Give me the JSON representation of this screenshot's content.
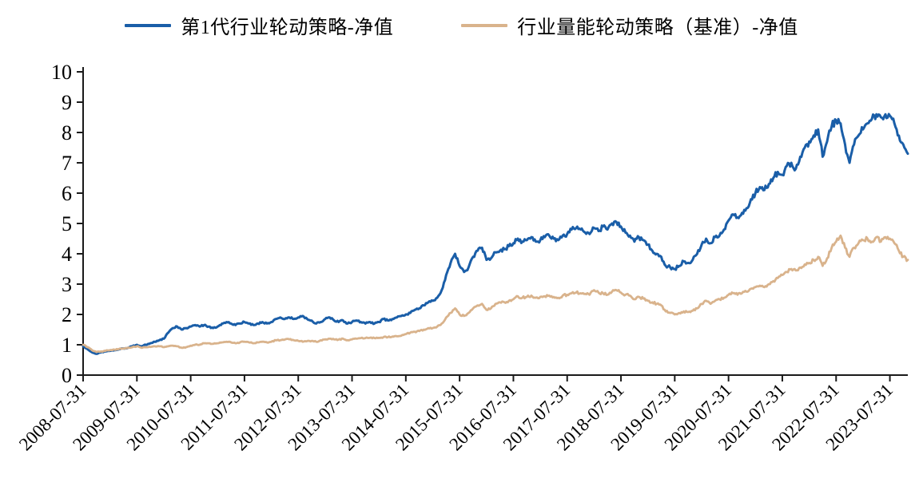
{
  "legend": [
    {
      "label": "第1代行业轮动策略-净值",
      "color": "#1A5EA8"
    },
    {
      "label": "行业量能轮动策略（基准）-净值",
      "color": "#D9B38C"
    }
  ],
  "chart_data": {
    "type": "line",
    "title": "",
    "xlabel": "",
    "ylabel": "",
    "grid": false,
    "legend_position": "top",
    "ylim": [
      0,
      10
    ],
    "y_ticks": [
      0,
      1,
      2,
      3,
      4,
      5,
      6,
      7,
      8,
      9,
      10
    ],
    "x_start_month": "2008-07",
    "x_months_per_tick": 12,
    "x_tick_labels": [
      "2008-07-31",
      "2009-07-31",
      "2010-07-31",
      "2011-07-31",
      "2012-07-31",
      "2013-07-31",
      "2014-07-31",
      "2015-07-31",
      "2016-07-31",
      "2017-07-31",
      "2018-07-31",
      "2019-07-31",
      "2020-07-31",
      "2021-07-31",
      "2022-07-31",
      "2023-07-31"
    ],
    "series": [
      {
        "name": "第1代行业轮动策略-净值",
        "color": "#1A5EA8",
        "values": [
          0.95,
          0.85,
          0.75,
          0.7,
          0.75,
          0.78,
          0.8,
          0.82,
          0.85,
          0.88,
          0.9,
          0.95,
          1.0,
          0.95,
          1.0,
          1.05,
          1.1,
          1.15,
          1.2,
          1.4,
          1.55,
          1.6,
          1.5,
          1.55,
          1.6,
          1.65,
          1.6,
          1.65,
          1.6,
          1.55,
          1.6,
          1.7,
          1.75,
          1.7,
          1.65,
          1.7,
          1.75,
          1.7,
          1.65,
          1.7,
          1.75,
          1.7,
          1.75,
          1.85,
          1.9,
          1.85,
          1.9,
          1.85,
          1.9,
          1.95,
          1.85,
          1.8,
          1.7,
          1.75,
          1.85,
          1.9,
          1.8,
          1.75,
          1.8,
          1.7,
          1.75,
          1.8,
          1.75,
          1.7,
          1.75,
          1.7,
          1.75,
          1.85,
          1.8,
          1.85,
          1.9,
          1.95,
          2.0,
          2.05,
          2.15,
          2.2,
          2.3,
          2.4,
          2.45,
          2.55,
          2.8,
          3.3,
          3.7,
          4.0,
          3.6,
          3.4,
          3.55,
          3.9,
          4.1,
          4.2,
          3.8,
          3.85,
          4.05,
          4.1,
          4.15,
          4.25,
          4.35,
          4.5,
          4.4,
          4.45,
          4.55,
          4.4,
          4.45,
          4.55,
          4.6,
          4.5,
          4.45,
          4.6,
          4.65,
          4.8,
          4.85,
          4.8,
          4.7,
          4.65,
          4.85,
          4.75,
          4.9,
          4.8,
          5.0,
          5.05,
          4.9,
          4.7,
          4.6,
          4.4,
          4.55,
          4.45,
          4.3,
          4.1,
          4.0,
          3.9,
          3.6,
          3.55,
          3.5,
          3.6,
          3.75,
          3.7,
          3.8,
          4.0,
          4.3,
          4.5,
          4.35,
          4.55,
          4.6,
          4.8,
          5.1,
          5.3,
          5.2,
          5.35,
          5.5,
          5.8,
          6.0,
          6.2,
          6.1,
          6.3,
          6.5,
          6.7,
          6.6,
          6.9,
          7.0,
          6.8,
          7.2,
          7.5,
          7.7,
          7.9,
          8.1,
          7.2,
          7.7,
          8.2,
          8.4,
          8.3,
          7.6,
          7.0,
          7.6,
          7.9,
          8.1,
          8.3,
          8.45,
          8.6,
          8.5,
          8.6,
          8.55,
          8.3,
          7.9,
          7.6,
          7.3
        ]
      },
      {
        "name": "行业量能轮动策略（基准）-净值",
        "color": "#D9B38C",
        "values": [
          1.0,
          0.92,
          0.82,
          0.76,
          0.78,
          0.8,
          0.82,
          0.84,
          0.86,
          0.88,
          0.9,
          0.92,
          0.95,
          0.9,
          0.92,
          0.93,
          0.95,
          0.95,
          0.92,
          0.95,
          0.97,
          0.95,
          0.9,
          0.92,
          0.97,
          1.0,
          1.0,
          1.05,
          1.05,
          1.03,
          1.05,
          1.08,
          1.1,
          1.08,
          1.05,
          1.08,
          1.1,
          1.08,
          1.05,
          1.08,
          1.1,
          1.08,
          1.1,
          1.15,
          1.15,
          1.17,
          1.18,
          1.15,
          1.13,
          1.1,
          1.12,
          1.13,
          1.1,
          1.15,
          1.18,
          1.2,
          1.18,
          1.17,
          1.2,
          1.15,
          1.18,
          1.2,
          1.22,
          1.22,
          1.23,
          1.22,
          1.23,
          1.25,
          1.25,
          1.27,
          1.28,
          1.3,
          1.35,
          1.4,
          1.43,
          1.45,
          1.5,
          1.55,
          1.55,
          1.6,
          1.7,
          1.9,
          2.05,
          2.2,
          2.0,
          1.95,
          2.05,
          2.2,
          2.3,
          2.35,
          2.15,
          2.2,
          2.35,
          2.4,
          2.4,
          2.45,
          2.5,
          2.6,
          2.55,
          2.58,
          2.62,
          2.55,
          2.58,
          2.6,
          2.62,
          2.58,
          2.55,
          2.62,
          2.65,
          2.7,
          2.72,
          2.7,
          2.68,
          2.65,
          2.8,
          2.72,
          2.7,
          2.65,
          2.75,
          2.8,
          2.72,
          2.65,
          2.62,
          2.5,
          2.58,
          2.52,
          2.45,
          2.4,
          2.35,
          2.3,
          2.1,
          2.05,
          2.0,
          2.05,
          2.1,
          2.08,
          2.12,
          2.2,
          2.35,
          2.45,
          2.35,
          2.45,
          2.5,
          2.55,
          2.65,
          2.7,
          2.65,
          2.7,
          2.75,
          2.85,
          2.9,
          2.95,
          2.9,
          3.0,
          3.1,
          3.2,
          3.3,
          3.4,
          3.5,
          3.45,
          3.55,
          3.65,
          3.7,
          3.8,
          3.9,
          3.6,
          3.85,
          4.2,
          4.4,
          4.6,
          4.2,
          3.9,
          4.2,
          4.35,
          4.45,
          4.5,
          4.4,
          4.55,
          4.4,
          4.55,
          4.5,
          4.35,
          4.1,
          3.9,
          3.8
        ]
      }
    ]
  }
}
